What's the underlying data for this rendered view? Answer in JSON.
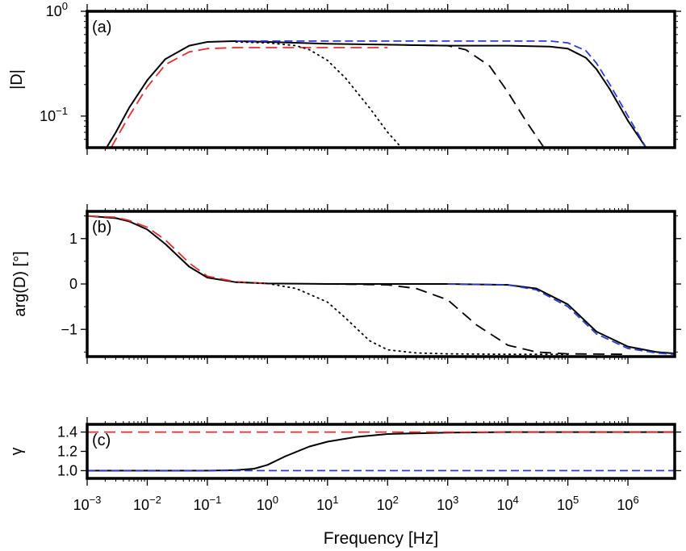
{
  "chart_data": [
    {
      "type": "line",
      "panel_label": "(a)",
      "xscale": "log",
      "yscale": "log",
      "xlim": [
        0.001,
        6000000
      ],
      "ylim": [
        0.05,
        1.0
      ],
      "ylabel": "|D|",
      "yticks": [
        {
          "value": 1.0,
          "base": "10",
          "exp": "0"
        },
        {
          "value": 0.1,
          "base": "10",
          "exp": "−1"
        }
      ],
      "grid": false,
      "series": [
        {
          "color": "#000000",
          "dash": "solid",
          "x": [
            0.0021,
            0.003,
            0.005,
            0.01,
            0.02,
            0.05,
            0.1,
            0.3,
            1,
            10,
            100,
            1000,
            10000,
            50000,
            100000,
            200000,
            300000,
            500000,
            1000000,
            2000000
          ],
          "y": [
            0.05,
            0.07,
            0.12,
            0.22,
            0.35,
            0.47,
            0.51,
            0.52,
            0.51,
            0.49,
            0.48,
            0.47,
            0.47,
            0.46,
            0.44,
            0.36,
            0.28,
            0.18,
            0.09,
            0.05
          ]
        },
        {
          "color": "#e03030",
          "dash": "long",
          "x": [
            0.0025,
            0.003,
            0.005,
            0.01,
            0.02,
            0.05,
            0.1,
            0.3,
            1,
            10,
            100
          ],
          "y": [
            0.05,
            0.06,
            0.1,
            0.19,
            0.31,
            0.41,
            0.44,
            0.45,
            0.45,
            0.45,
            0.45
          ]
        },
        {
          "color": "#2a3bd6",
          "dash": "medium",
          "x": [
            0.3,
            1,
            10,
            100,
            1000,
            10000,
            50000,
            100000,
            200000,
            300000,
            500000,
            1000000,
            2000000
          ],
          "y": [
            0.52,
            0.52,
            0.52,
            0.52,
            0.52,
            0.52,
            0.52,
            0.5,
            0.42,
            0.32,
            0.2,
            0.1,
            0.05
          ]
        },
        {
          "color": "#000000",
          "dash": "dotted",
          "x": [
            0.3,
            1,
            3,
            5,
            10,
            20,
            50,
            100,
            170
          ],
          "y": [
            0.51,
            0.5,
            0.47,
            0.43,
            0.34,
            0.23,
            0.12,
            0.07,
            0.05
          ]
        },
        {
          "color": "#000000",
          "dash": "long-black",
          "x": [
            100,
            1000,
            2000,
            5000,
            10000,
            20000,
            40000
          ],
          "y": [
            0.48,
            0.47,
            0.43,
            0.3,
            0.17,
            0.09,
            0.05
          ]
        }
      ]
    },
    {
      "type": "line",
      "panel_label": "(b)",
      "xscale": "log",
      "yscale": "linear",
      "xlim": [
        0.001,
        6000000
      ],
      "ylim": [
        -1.6,
        1.6
      ],
      "ylabel": "arg(D) [°]",
      "yticks": [
        {
          "value": 1,
          "label": "1"
        },
        {
          "value": 0,
          "label": "0"
        },
        {
          "value": -1,
          "label": "−1"
        }
      ],
      "grid": false,
      "series": [
        {
          "color": "#000000",
          "dash": "solid",
          "x": [
            0.001,
            0.003,
            0.005,
            0.01,
            0.02,
            0.05,
            0.1,
            0.3,
            1,
            10,
            100,
            1000,
            10000,
            30000,
            100000,
            300000,
            1000000,
            3000000,
            6000000
          ],
          "y": [
            1.5,
            1.45,
            1.38,
            1.2,
            0.88,
            0.38,
            0.14,
            0.04,
            0.01,
            0.0,
            0.0,
            0.0,
            -0.02,
            -0.1,
            -0.45,
            -1.05,
            -1.38,
            -1.5,
            -1.53
          ]
        },
        {
          "color": "#e03030",
          "dash": "long",
          "x": [
            0.001,
            0.003,
            0.005,
            0.01,
            0.02,
            0.05,
            0.1,
            0.3,
            1
          ],
          "y": [
            1.5,
            1.47,
            1.4,
            1.25,
            0.97,
            0.46,
            0.17,
            0.05,
            0.01
          ]
        },
        {
          "color": "#2a3bd6",
          "dash": "medium",
          "x": [
            1000,
            10000,
            30000,
            100000,
            300000,
            1000000,
            3000000,
            6000000
          ],
          "y": [
            0.0,
            -0.02,
            -0.13,
            -0.5,
            -1.1,
            -1.42,
            -1.52,
            -1.55
          ]
        },
        {
          "color": "#000000",
          "dash": "dotted",
          "x": [
            0.3,
            1,
            3,
            10,
            20,
            50,
            100,
            300,
            1000,
            10000,
            100000
          ],
          "y": [
            0.04,
            0.01,
            -0.1,
            -0.4,
            -0.75,
            -1.25,
            -1.45,
            -1.52,
            -1.54,
            -1.55,
            -1.55
          ]
        },
        {
          "color": "#000000",
          "dash": "long-black",
          "x": [
            10,
            100,
            300,
            1000,
            3000,
            10000,
            30000,
            100000,
            1000000
          ],
          "y": [
            0.0,
            -0.02,
            -0.1,
            -0.35,
            -0.9,
            -1.35,
            -1.5,
            -1.54,
            -1.55
          ]
        }
      ]
    },
    {
      "type": "line",
      "panel_label": "(c)",
      "xscale": "log",
      "yscale": "linear",
      "xlim": [
        0.001,
        6000000
      ],
      "ylim": [
        0.92,
        1.48
      ],
      "xlabel": "Frequency [Hz]",
      "ylabel": "γ",
      "yticks": [
        {
          "value": 1.4,
          "label": "1.4"
        },
        {
          "value": 1.2,
          "label": "1.2"
        },
        {
          "value": 1.0,
          "label": "1.0"
        }
      ],
      "xticks": [
        {
          "value": 0.001,
          "base": "10",
          "exp": "−3"
        },
        {
          "value": 0.01,
          "base": "10",
          "exp": "−2"
        },
        {
          "value": 0.1,
          "base": "10",
          "exp": "−1"
        },
        {
          "value": 1,
          "base": "10",
          "exp": "0"
        },
        {
          "value": 10,
          "base": "10",
          "exp": "1"
        },
        {
          "value": 100,
          "base": "10",
          "exp": "2"
        },
        {
          "value": 1000,
          "base": "10",
          "exp": "3"
        },
        {
          "value": 10000,
          "base": "10",
          "exp": "4"
        },
        {
          "value": 100000,
          "base": "10",
          "exp": "5"
        },
        {
          "value": 1000000,
          "base": "10",
          "exp": "6"
        }
      ],
      "grid": false,
      "series": [
        {
          "color": "#000000",
          "dash": "solid",
          "x": [
            0.001,
            0.1,
            0.3,
            0.6,
            1,
            2,
            5,
            10,
            30,
            100,
            1000,
            10000,
            6000000
          ],
          "y": [
            1.0,
            1.0,
            1.005,
            1.02,
            1.06,
            1.15,
            1.25,
            1.3,
            1.35,
            1.38,
            1.395,
            1.4,
            1.4
          ]
        },
        {
          "color": "#e03030",
          "dash": "long",
          "x": [
            0.001,
            6000000
          ],
          "y": [
            1.4,
            1.4
          ]
        },
        {
          "color": "#2a3bd6",
          "dash": "medium",
          "x": [
            0.001,
            6000000
          ],
          "y": [
            1.0,
            1.0
          ]
        }
      ]
    }
  ]
}
